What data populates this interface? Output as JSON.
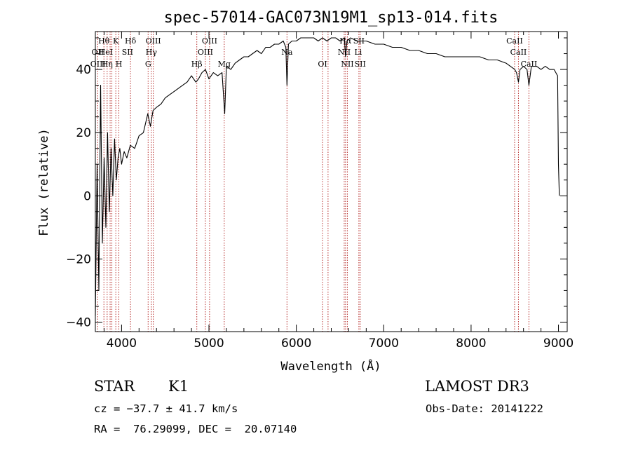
{
  "chart_data": {
    "type": "line",
    "title": "spec-57014-GAC073N19M1_sp13-014.fits",
    "xlabel": "Wavelength (Å)",
    "ylabel": "Flux (relative)",
    "xlim": [
      3700,
      9100
    ],
    "ylim": [
      -43,
      52
    ],
    "x_ticks": [
      4000,
      5000,
      6000,
      7000,
      8000,
      9000
    ],
    "x_tick_labels": [
      "4000",
      "5000",
      "6000",
      "7000",
      "8000",
      "9000"
    ],
    "y_ticks": [
      -40,
      -20,
      0,
      20,
      40
    ],
    "y_tick_labels": [
      "−40",
      "−20",
      "0",
      "20",
      "40"
    ],
    "grid": false,
    "series": [
      {
        "name": "spectrum",
        "x": [
          3700,
          3720,
          3740,
          3760,
          3780,
          3800,
          3820,
          3840,
          3860,
          3880,
          3900,
          3920,
          3940,
          3960,
          3980,
          4000,
          4030,
          4060,
          4100,
          4150,
          4200,
          4250,
          4300,
          4330,
          4360,
          4400,
          4450,
          4500,
          4550,
          4600,
          4650,
          4700,
          4750,
          4800,
          4850,
          4880,
          4920,
          4960,
          5000,
          5050,
          5100,
          5150,
          5180,
          5200,
          5250,
          5300,
          5350,
          5400,
          5450,
          5500,
          5550,
          5600,
          5650,
          5700,
          5750,
          5800,
          5850,
          5880,
          5893,
          5910,
          5950,
          6000,
          6050,
          6100,
          6150,
          6200,
          6250,
          6300,
          6350,
          6400,
          6450,
          6500,
          6550,
          6563,
          6580,
          6620,
          6700,
          6800,
          6900,
          7000,
          7100,
          7200,
          7300,
          7400,
          7500,
          7600,
          7700,
          7800,
          7900,
          8000,
          8100,
          8200,
          8300,
          8400,
          8450,
          8500,
          8520,
          8542,
          8560,
          8600,
          8640,
          8662,
          8690,
          8750,
          8800,
          8850,
          8900,
          8950,
          8990,
          9000,
          9010
        ],
        "values": [
          -38,
          10,
          -30,
          35,
          -15,
          12,
          -10,
          20,
          -5,
          15,
          0,
          18,
          5,
          12,
          15,
          10,
          14,
          12,
          16,
          15,
          19,
          20,
          26,
          22,
          27,
          28,
          29,
          31,
          32,
          33,
          34,
          35,
          36,
          38,
          36,
          37,
          39,
          40,
          37,
          39,
          38,
          39,
          26,
          41,
          40,
          42,
          43,
          44,
          44,
          45,
          46,
          45,
          47,
          47,
          48,
          48,
          49,
          47,
          35,
          48,
          49,
          49,
          50,
          50,
          50,
          50,
          49,
          50,
          49,
          50,
          50,
          49,
          50,
          44,
          49,
          50,
          49,
          49,
          48,
          48,
          47,
          47,
          46,
          46,
          45,
          45,
          44,
          44,
          44,
          44,
          44,
          43,
          43,
          42,
          41,
          40,
          39,
          36,
          40,
          41,
          40,
          35,
          41,
          41,
          40,
          41,
          40,
          40,
          38,
          10,
          0
        ]
      }
    ],
    "line_markers": [
      {
        "label": "Hθ",
        "wavelength": 3798,
        "row": 1
      },
      {
        "label": "OII",
        "wavelength": 3727,
        "row": 2
      },
      {
        "label": "OIII",
        "wavelength": 3730,
        "row": 3
      },
      {
        "label": "HeI",
        "wavelength": 3820,
        "row": 2
      },
      {
        "label": "K",
        "wavelength": 3934,
        "row": 1
      },
      {
        "label": "Hη",
        "wavelength": 3835,
        "row": 3
      },
      {
        "label": "SII",
        "wavelength": 4068,
        "row": 2
      },
      {
        "label": "H",
        "wavelength": 3969,
        "row": 3
      },
      {
        "label": "Hδ",
        "wavelength": 4102,
        "row": 1
      },
      {
        "label": "OIII",
        "wavelength": 4363,
        "row": 1
      },
      {
        "label": "Hγ",
        "wavelength": 4341,
        "row": 2
      },
      {
        "label": "G",
        "wavelength": 4304,
        "row": 3
      },
      {
        "label": "OIII",
        "wavelength": 5007,
        "row": 1
      },
      {
        "label": "OIII",
        "wavelength": 4959,
        "row": 2
      },
      {
        "label": "Hβ",
        "wavelength": 4861,
        "row": 3
      },
      {
        "label": "Mg",
        "wavelength": 5175,
        "row": 3
      },
      {
        "label": "Na",
        "wavelength": 5893,
        "row": 2
      },
      {
        "label": "OI",
        "wavelength": 6300,
        "row": 3
      },
      {
        "label": "Hα",
        "wavelength": 6563,
        "row": 1
      },
      {
        "label": "SII",
        "wavelength": 6716,
        "row": 1
      },
      {
        "label": "NII",
        "wavelength": 6548,
        "row": 2
      },
      {
        "label": "Li",
        "wavelength": 6708,
        "row": 2
      },
      {
        "label": "NII",
        "wavelength": 6584,
        "row": 3
      },
      {
        "label": "SII",
        "wavelength": 6731,
        "row": 3
      },
      {
        "label": "CaII",
        "wavelength": 8498,
        "row": 1
      },
      {
        "label": "CaII",
        "wavelength": 8542,
        "row": 2
      },
      {
        "label": "CaII",
        "wavelength": 8662,
        "row": 3
      }
    ],
    "marker_lines": [
      3727,
      3798,
      3835,
      3869,
      3889,
      3934,
      3969,
      4102,
      4304,
      4341,
      4363,
      4861,
      4959,
      5007,
      5175,
      5893,
      6300,
      6363,
      6548,
      6563,
      6584,
      6716,
      6731,
      8498,
      8542,
      8662
    ],
    "line_color": "#000000",
    "marker_color": "#b8312f"
  },
  "info": {
    "class_label": "STAR",
    "subclass": "K1",
    "survey": "LAMOST DR3",
    "cz": "cz = −37.7 ± 41.7 km/s",
    "obs_date": "Obs-Date: 20141222",
    "coords": "RA =  76.29099, DEC =  20.07140"
  }
}
